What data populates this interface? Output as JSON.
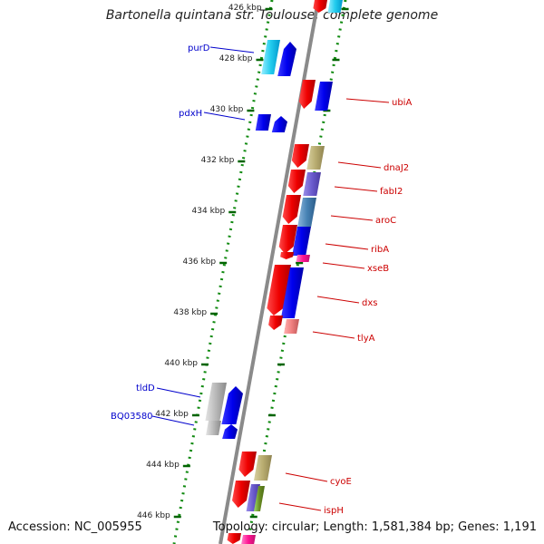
{
  "title": "Bartonella quintana str. Toulouse, complete genome",
  "accession": "Accession: NC_005955",
  "topology": "Topology: circular; Length: 1,581,384 bp; Genes: 1,191",
  "colors": {
    "backbone": "#888888",
    "tick": "#006400",
    "forward_label": "#0000cc",
    "reverse_label": "#cc0000"
  },
  "ticks": [
    {
      "label": "426 kbp",
      "faded": true
    },
    {
      "label": "428 kbp"
    },
    {
      "label": "430 kbp"
    },
    {
      "label": "432 kbp"
    },
    {
      "label": "434 kbp"
    },
    {
      "label": "436 kbp"
    },
    {
      "label": "438 kbp"
    },
    {
      "label": "440 kbp"
    },
    {
      "label": "442 kbp"
    },
    {
      "label": "444 kbp"
    },
    {
      "label": "446 kbp"
    }
  ],
  "gene_labels": [
    {
      "name": "purD",
      "strand": "forward"
    },
    {
      "name": "pdxH",
      "strand": "forward"
    },
    {
      "name": "ubiA",
      "strand": "reverse"
    },
    {
      "name": "dnaJ2",
      "strand": "reverse"
    },
    {
      "name": "fabI2",
      "strand": "reverse"
    },
    {
      "name": "aroC",
      "strand": "reverse"
    },
    {
      "name": "ribA",
      "strand": "reverse"
    },
    {
      "name": "xseB",
      "strand": "reverse"
    },
    {
      "name": "dxs",
      "strand": "reverse"
    },
    {
      "name": "tlyA",
      "strand": "reverse"
    },
    {
      "name": "tldD",
      "strand": "forward"
    },
    {
      "name": "BQ03580",
      "strand": "forward"
    },
    {
      "name": "cyoE",
      "strand": "reverse"
    },
    {
      "name": "ispH",
      "strand": "reverse"
    }
  ]
}
